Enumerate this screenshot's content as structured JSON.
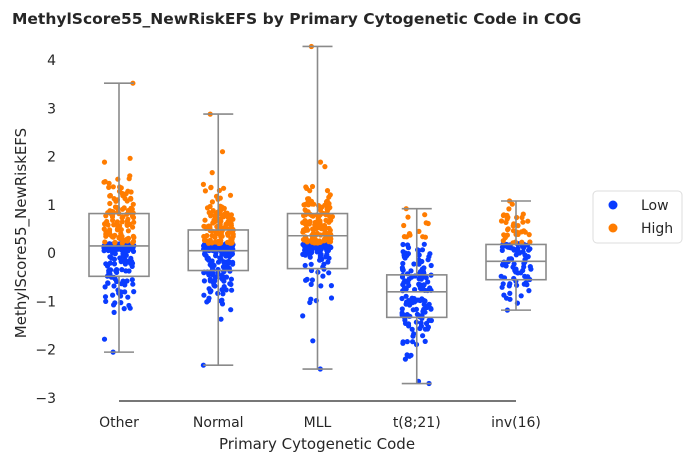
{
  "chart_data": {
    "type": "box-strip",
    "title": "MethylScore55_NewRiskEFS by Primary Cytogenetic Code in COG",
    "xlabel": "Primary Cytogenetic Code",
    "ylabel": "MethylScore55_NewRiskEFS",
    "ylim": [
      -3.1,
      4.45
    ],
    "yticks": [
      -3,
      -2,
      -1,
      0,
      1,
      2,
      3,
      4
    ],
    "ytick_labels": [
      "−3",
      "−2",
      "−1",
      "0",
      "1",
      "2",
      "3",
      "4"
    ],
    "grid": false,
    "legend_position": "right",
    "categories": [
      "Other",
      "Normal",
      "MLL",
      "t(8;21)",
      "inv(16)"
    ],
    "boxes": [
      {
        "category": "Other",
        "whisker_low": -2.05,
        "q1": -0.48,
        "median": 0.15,
        "q3": 0.82,
        "whisker_high": 3.52,
        "low_n": 150,
        "high_n": 115,
        "low_min": -2.05,
        "high_max": 3.52
      },
      {
        "category": "Normal",
        "whisker_low": -2.32,
        "q1": -0.36,
        "median": 0.05,
        "q3": 0.48,
        "whisker_high": 2.88,
        "low_n": 160,
        "high_n": 110,
        "low_min": -2.32,
        "high_max": 2.88
      },
      {
        "category": "MLL",
        "whisker_low": -2.4,
        "q1": -0.32,
        "median": 0.36,
        "q3": 0.82,
        "whisker_high": 4.28,
        "low_n": 100,
        "high_n": 130,
        "low_min": -2.4,
        "high_max": 4.28
      },
      {
        "category": "t(8;21)",
        "whisker_low": -2.7,
        "q1": -1.33,
        "median": -0.8,
        "q3": -0.45,
        "whisker_high": 0.92,
        "low_n": 140,
        "high_n": 12,
        "low_min": -2.7,
        "high_max": 0.92
      },
      {
        "category": "inv(16)",
        "whisker_low": -1.18,
        "q1": -0.55,
        "median": -0.17,
        "q3": 0.18,
        "whisker_high": 1.08,
        "low_n": 75,
        "high_n": 35,
        "low_min": -1.18,
        "high_max": 1.08
      }
    ],
    "series": [
      {
        "name": "Low",
        "color": "#0a3cff"
      },
      {
        "name": "High",
        "color": "#ff7c00"
      }
    ],
    "threshold": 0.2
  }
}
